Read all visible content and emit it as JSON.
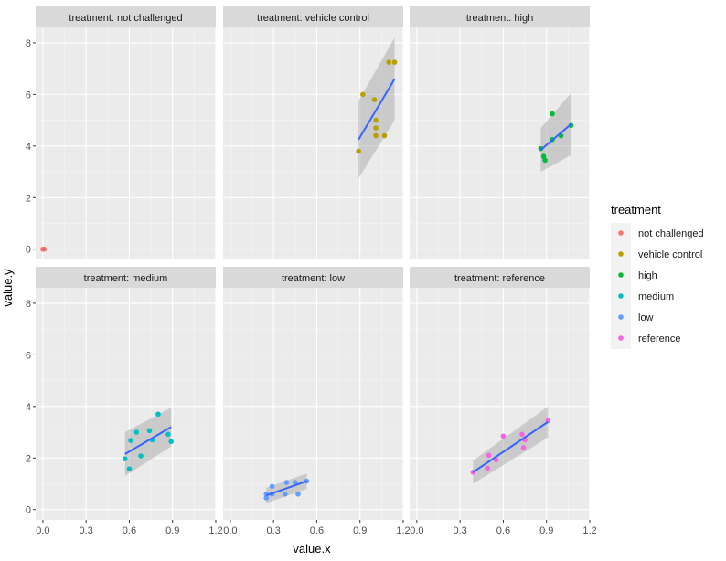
{
  "chart_data": {
    "type": "scatter",
    "title": "",
    "xlabel": "value.x",
    "ylabel": "value.y",
    "xlim": [
      -0.05,
      1.2
    ],
    "ylim": [
      -0.4,
      8.6
    ],
    "xticks": [
      "0.0",
      "0.3",
      "0.6",
      "0.9",
      "1.2"
    ],
    "xtick_values": [
      0,
      0.3,
      0.6,
      0.9,
      1.2
    ],
    "yticks": [
      "0",
      "2",
      "4",
      "6",
      "8"
    ],
    "ytick_values": [
      0,
      2,
      4,
      6,
      8
    ],
    "grid": true,
    "facet_prefix": "treatment: ",
    "legend": {
      "title": "treatment",
      "position": "right",
      "entries": [
        {
          "label": "not challenged",
          "color": "#F8766D"
        },
        {
          "label": "vehicle control",
          "color": "#B79F00"
        },
        {
          "label": "high",
          "color": "#00BA38"
        },
        {
          "label": "medium",
          "color": "#00BFC4"
        },
        {
          "label": "low",
          "color": "#619CFF"
        },
        {
          "label": "reference",
          "color": "#F564E3"
        }
      ]
    },
    "smooth_color": "#3366FF",
    "panels": [
      {
        "name": "not challenged",
        "color": "#F8766D",
        "points": [
          [
            0.0,
            0.0
          ],
          [
            0.01,
            0.0
          ]
        ],
        "fit": {
          "x": [
            0.0,
            0.01
          ],
          "y": [
            0.0,
            0.0
          ],
          "se": [
            0.0,
            0.0
          ]
        }
      },
      {
        "name": "vehicle control",
        "color": "#B79F00",
        "points": [
          [
            0.89,
            3.8
          ],
          [
            0.92,
            6.0
          ],
          [
            1.0,
            5.8
          ],
          [
            1.01,
            5.0
          ],
          [
            1.01,
            4.7
          ],
          [
            1.01,
            4.4
          ],
          [
            1.07,
            4.4
          ],
          [
            1.1,
            7.25
          ],
          [
            1.14,
            7.25
          ]
        ],
        "fit": {
          "x": [
            0.89,
            1.14
          ],
          "y": [
            4.25,
            6.6
          ],
          "se": [
            1.5,
            1.6
          ]
        }
      },
      {
        "name": "high",
        "color": "#00BA38",
        "points": [
          [
            0.86,
            3.9
          ],
          [
            0.88,
            3.6
          ],
          [
            0.89,
            3.45
          ],
          [
            0.94,
            5.25
          ],
          [
            0.94,
            4.25
          ],
          [
            1.0,
            4.4
          ],
          [
            1.07,
            4.8
          ]
        ],
        "fit": {
          "x": [
            0.86,
            1.07
          ],
          "y": [
            3.85,
            4.85
          ],
          "se": [
            0.85,
            1.2
          ]
        }
      },
      {
        "name": "medium",
        "color": "#00BFC4",
        "points": [
          [
            0.57,
            1.97
          ],
          [
            0.6,
            1.58
          ],
          [
            0.61,
            2.68
          ],
          [
            0.65,
            3.0
          ],
          [
            0.68,
            2.08
          ],
          [
            0.74,
            3.06
          ],
          [
            0.76,
            2.7
          ],
          [
            0.8,
            3.7
          ],
          [
            0.87,
            2.92
          ],
          [
            0.89,
            2.64
          ]
        ],
        "fit": {
          "x": [
            0.57,
            0.89
          ],
          "y": [
            2.15,
            3.2
          ],
          "se": [
            0.85,
            0.75
          ]
        }
      },
      {
        "name": "low",
        "color": "#619CFF",
        "points": [
          [
            0.25,
            0.45
          ],
          [
            0.25,
            0.6
          ],
          [
            0.29,
            0.6
          ],
          [
            0.29,
            0.9
          ],
          [
            0.38,
            0.6
          ],
          [
            0.39,
            1.05
          ],
          [
            0.45,
            1.05
          ],
          [
            0.47,
            0.6
          ],
          [
            0.53,
            1.1
          ]
        ],
        "fit": {
          "x": [
            0.25,
            0.53
          ],
          "y": [
            0.55,
            1.1
          ],
          "se": [
            0.3,
            0.3
          ]
        }
      },
      {
        "name": "reference",
        "color": "#F564E3",
        "points": [
          [
            0.39,
            1.45
          ],
          [
            0.49,
            1.6
          ],
          [
            0.5,
            2.1
          ],
          [
            0.55,
            1.93
          ],
          [
            0.6,
            2.85
          ],
          [
            0.73,
            2.92
          ],
          [
            0.74,
            2.4
          ],
          [
            0.75,
            2.7
          ],
          [
            0.91,
            3.45
          ]
        ],
        "fit": {
          "x": [
            0.39,
            0.91
          ],
          "y": [
            1.45,
            3.4
          ],
          "se": [
            0.45,
            0.6
          ]
        }
      }
    ]
  }
}
